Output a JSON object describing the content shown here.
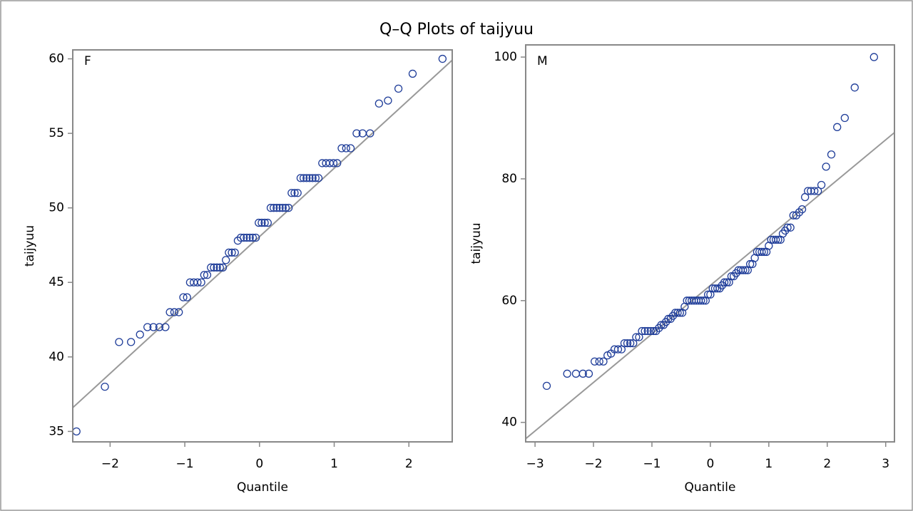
{
  "title": "Q–Q Plots of taijyuu",
  "chart_data": [
    {
      "type": "scatter",
      "panel_label": "F",
      "xlabel": "Quantile",
      "ylabel": "taijyuu",
      "color": "#1f3d99",
      "xlim": [
        -2.5,
        2.58
      ],
      "ylim": [
        34.3,
        60.6
      ],
      "xticks": [
        {
          "value": -2,
          "label": "−2"
        },
        {
          "value": -1,
          "label": "−1"
        },
        0,
        1,
        2
      ],
      "yticks": [
        35,
        40,
        45,
        50,
        55,
        60
      ],
      "reference_line": {
        "intercept": 48.07,
        "slope": 4.59,
        "color": "#999999"
      },
      "x": [
        -2.45,
        -2.07,
        -1.88,
        -1.72,
        -1.6,
        -1.5,
        -1.42,
        -1.34,
        -1.26,
        -1.2,
        -1.14,
        -1.08,
        -1.02,
        -0.97,
        -0.93,
        -0.88,
        -0.83,
        -0.78,
        -0.74,
        -0.7,
        -0.65,
        -0.61,
        -0.57,
        -0.53,
        -0.49,
        -0.45,
        -0.41,
        -0.37,
        -0.33,
        -0.29,
        -0.25,
        -0.21,
        -0.17,
        -0.13,
        -0.09,
        -0.05,
        -0.01,
        0.03,
        0.07,
        0.11,
        0.15,
        0.19,
        0.23,
        0.27,
        0.31,
        0.35,
        0.39,
        0.43,
        0.47,
        0.51,
        0.55,
        0.59,
        0.63,
        0.67,
        0.71,
        0.75,
        0.79,
        0.84,
        0.89,
        0.94,
        0.99,
        1.04,
        1.1,
        1.16,
        1.22,
        1.3,
        1.38,
        1.48,
        1.6,
        1.72,
        1.86,
        2.05,
        2.45
      ],
      "values": [
        35,
        38,
        41,
        41,
        41.5,
        42,
        42,
        42,
        42,
        43,
        43,
        43,
        44,
        44,
        45,
        45,
        45,
        45,
        45.5,
        45.5,
        46,
        46,
        46,
        46,
        46,
        46.5,
        47,
        47,
        47,
        47.8,
        48,
        48,
        48,
        48,
        48,
        48,
        49,
        49,
        49,
        49,
        50,
        50,
        50,
        50,
        50,
        50,
        50,
        51,
        51,
        51,
        52,
        52,
        52,
        52,
        52,
        52,
        52,
        53,
        53,
        53,
        53,
        53,
        54,
        54,
        54,
        55,
        55,
        55,
        57,
        57.2,
        58,
        59,
        60
      ]
    },
    {
      "type": "scatter",
      "panel_label": "M",
      "xlabel": "Quantile",
      "ylabel": "taijyuu",
      "color": "#1f3d99",
      "xlim": [
        -3.16,
        3.15
      ],
      "ylim": [
        36.8,
        102
      ],
      "xticks": [
        {
          "value": -3,
          "label": "−3"
        },
        {
          "value": -2,
          "label": "−2"
        },
        {
          "value": -1,
          "label": "−1"
        },
        0,
        1,
        2,
        3
      ],
      "yticks": [
        40,
        60,
        80,
        100
      ],
      "reference_line": {
        "intercept": 62.5,
        "slope": 7.97,
        "color": "#999999"
      },
      "x": [
        -2.8,
        -2.45,
        -2.3,
        -2.18,
        -2.08,
        -1.98,
        -1.9,
        -1.83,
        -1.76,
        -1.7,
        -1.64,
        -1.58,
        -1.52,
        -1.47,
        -1.42,
        -1.37,
        -1.32,
        -1.27,
        -1.22,
        -1.17,
        -1.12,
        -1.07,
        -1.02,
        -0.97,
        -0.93,
        -0.88,
        -0.84,
        -0.8,
        -0.76,
        -0.72,
        -0.68,
        -0.64,
        -0.6,
        -0.56,
        -0.52,
        -0.48,
        -0.44,
        -0.4,
        -0.36,
        -0.32,
        -0.28,
        -0.24,
        -0.2,
        -0.16,
        -0.12,
        -0.08,
        -0.04,
        0,
        0.04,
        0.08,
        0.12,
        0.16,
        0.2,
        0.24,
        0.28,
        0.32,
        0.36,
        0.4,
        0.44,
        0.48,
        0.52,
        0.56,
        0.6,
        0.64,
        0.68,
        0.72,
        0.76,
        0.8,
        0.84,
        0.88,
        0.92,
        0.96,
        1.0,
        1.04,
        1.08,
        1.12,
        1.16,
        1.2,
        1.24,
        1.28,
        1.32,
        1.37,
        1.42,
        1.47,
        1.52,
        1.57,
        1.62,
        1.67,
        1.72,
        1.78,
        1.84,
        1.9,
        1.98,
        2.07,
        2.17,
        2.3,
        2.47,
        2.8
      ],
      "values": [
        46,
        48,
        48,
        48,
        48,
        50,
        50,
        50,
        51,
        51.3,
        52,
        52,
        52,
        53,
        53,
        53,
        53,
        54,
        54,
        55,
        55,
        55,
        55,
        55,
        55,
        55.5,
        56,
        56,
        56.5,
        57,
        57,
        57.5,
        58,
        58,
        58,
        58,
        59,
        60,
        60,
        60,
        60,
        60,
        60,
        60,
        60,
        60,
        61,
        61,
        62,
        62,
        62,
        62,
        62.5,
        63,
        63,
        63,
        64,
        64,
        64.5,
        65,
        65,
        65,
        65,
        65,
        66,
        66,
        67,
        68,
        68,
        68,
        68,
        68,
        69,
        70,
        70,
        70,
        70,
        70,
        71,
        71.5,
        72,
        72,
        74,
        74,
        74.5,
        75,
        77,
        78,
        78,
        78,
        78,
        79,
        82,
        84,
        88.5,
        90,
        95,
        100
      ]
    }
  ]
}
